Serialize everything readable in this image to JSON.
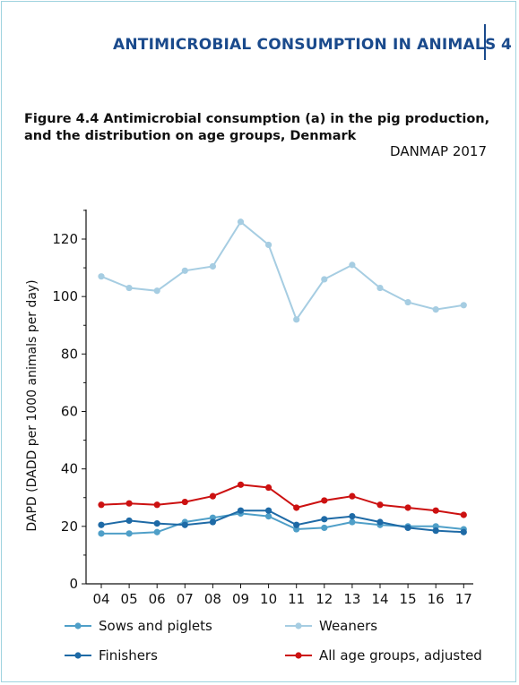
{
  "header": {
    "title": "ANTIMICROBIAL CONSUMPTION IN ANIMALS",
    "page": "4"
  },
  "figure": {
    "title": "Figure 4.4 Antimicrobial consumption (a) in the pig production, and the distribution on age groups, Denmark",
    "source": "DANMAP 2017"
  },
  "colors": {
    "sows": "#4f9fc8",
    "weaners": "#a6cde2",
    "finishers": "#1e6aa6",
    "all": "#cc1111"
  },
  "chart_data": {
    "type": "line",
    "xlabel": "",
    "ylabel": "DAPD (DADD per 1000 animals per day)",
    "ylim": [
      0,
      130
    ],
    "yticks": [
      0,
      20,
      40,
      60,
      80,
      100,
      120
    ],
    "x": [
      "04",
      "05",
      "06",
      "07",
      "08",
      "09",
      "10",
      "11",
      "12",
      "13",
      "14",
      "15",
      "16",
      "17"
    ],
    "legend_position": "bottom",
    "grid": false,
    "series": [
      {
        "name": "Sows and piglets",
        "color": "#4f9fc8",
        "values": [
          17.5,
          17.5,
          18,
          21.5,
          23,
          24.5,
          23.5,
          19,
          19.5,
          21.5,
          20.5,
          20,
          20,
          19
        ]
      },
      {
        "name": "Weaners",
        "color": "#a6cde2",
        "values": [
          107,
          103,
          102,
          109,
          110.5,
          126,
          118,
          92,
          106,
          111,
          103,
          98,
          95.5,
          97
        ]
      },
      {
        "name": "Finishers",
        "color": "#1e6aa6",
        "values": [
          20.5,
          22,
          21,
          20.5,
          21.5,
          25.5,
          25.5,
          20.5,
          22.5,
          23.5,
          21.5,
          19.5,
          18.5,
          18
        ]
      },
      {
        "name": "All age groups, adjusted",
        "color": "#cc1111",
        "values": [
          27.5,
          28,
          27.5,
          28.5,
          30.5,
          34.5,
          33.5,
          26.5,
          29,
          30.5,
          27.5,
          26.5,
          25.5,
          24
        ]
      }
    ]
  }
}
